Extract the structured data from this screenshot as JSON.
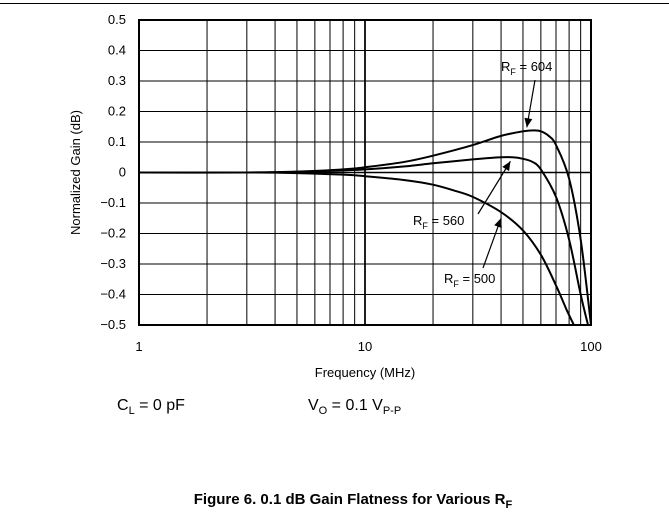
{
  "chart_data": {
    "type": "line",
    "title": "",
    "xlabel": "Frequency (MHz)",
    "ylabel": "Normalized Gain (dB)",
    "xscale": "log",
    "xlim": [
      1,
      100
    ],
    "ylim": [
      -0.5,
      0.5
    ],
    "grid": true,
    "x_ticks": [
      "1",
      "10",
      "100"
    ],
    "y_ticks": [
      "0.5",
      "0.4",
      "0.3",
      "0.2",
      "0.1",
      "0",
      "−0.1",
      "−0.2",
      "−0.3",
      "−0.4",
      "−0.5"
    ],
    "series": [
      {
        "name_main": "R",
        "name_sub": "F",
        "name_rest": " = 604",
        "x": [
          1,
          3,
          5,
          8,
          10,
          15,
          20,
          30,
          40,
          50,
          56,
          60,
          65,
          70,
          80,
          90,
          100
        ],
        "y": [
          0,
          0.0,
          0.003,
          0.01,
          0.017,
          0.035,
          0.055,
          0.09,
          0.12,
          0.135,
          0.138,
          0.135,
          0.12,
          0.09,
          -0.02,
          -0.22,
          -0.5
        ]
      },
      {
        "name_main": "R",
        "name_sub": "F",
        "name_rest": " = 560",
        "x": [
          1,
          3,
          5,
          8,
          10,
          15,
          20,
          30,
          40,
          45,
          50,
          55,
          60,
          70,
          80,
          90,
          97
        ],
        "y": [
          0,
          0.0,
          0.002,
          0.007,
          0.01,
          0.02,
          0.03,
          0.043,
          0.05,
          0.05,
          0.045,
          0.035,
          0.01,
          -0.08,
          -0.22,
          -0.4,
          -0.5
        ]
      },
      {
        "name_main": "R",
        "name_sub": "F",
        "name_rest": " = 500",
        "x": [
          1,
          3,
          5,
          8,
          10,
          15,
          20,
          25,
          30,
          40,
          50,
          60,
          70,
          78,
          84
        ],
        "y": [
          0,
          0.0,
          -0.002,
          -0.007,
          -0.012,
          -0.025,
          -0.04,
          -0.06,
          -0.08,
          -0.13,
          -0.19,
          -0.27,
          -0.37,
          -0.45,
          -0.5
        ]
      }
    ]
  },
  "conditions": {
    "cl_main": "C",
    "cl_sub": "L",
    "cl_rest": " = 0 pF",
    "vo_main": "V",
    "vo_sub": "O",
    "vo_mid": " = 0.1 V",
    "vo_sub2": "P-P"
  },
  "caption": {
    "main": "Figure 6. 0.1 dB Gain Flatness for Various R",
    "sub": "F"
  }
}
